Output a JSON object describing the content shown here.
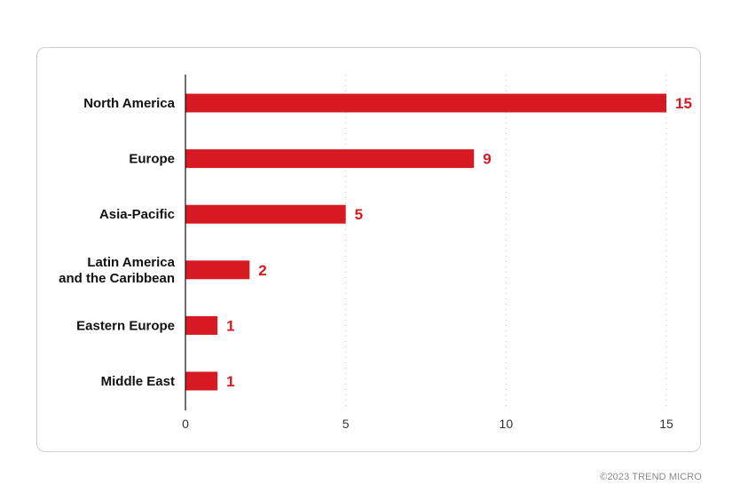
{
  "footer": "©2023 TREND MICRO",
  "colors": {
    "bar": "#d71921",
    "value_label": "#d71921",
    "axis": "#111111",
    "grid": "#bdbdbd"
  },
  "chart_data": {
    "type": "bar",
    "orientation": "horizontal",
    "title": "",
    "xlabel": "",
    "ylabel": "",
    "categories": [
      "North America",
      "Europe",
      "Asia-Pacific",
      "Latin America and the Caribbean",
      "Eastern Europe",
      "Middle East"
    ],
    "category_lines": [
      [
        "North America"
      ],
      [
        "Europe"
      ],
      [
        "Asia-Pacific"
      ],
      [
        "Latin America",
        "and the Caribbean"
      ],
      [
        "Eastern Europe"
      ],
      [
        "Middle East"
      ]
    ],
    "values": [
      15,
      9,
      5,
      2,
      1,
      1
    ],
    "xlim": [
      0,
      15
    ],
    "xticks": [
      0,
      5,
      10,
      15
    ],
    "grid": "vertical dotted",
    "legend": "none"
  }
}
